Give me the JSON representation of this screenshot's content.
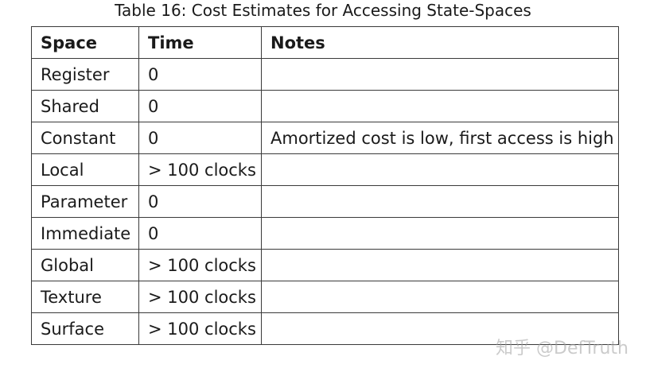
{
  "caption": "Table 16: Cost Estimates for Accessing State-Spaces",
  "table": {
    "headers": [
      "Space",
      "Time",
      "Notes"
    ],
    "rows": [
      [
        "Register",
        "0",
        ""
      ],
      [
        "Shared",
        "0",
        ""
      ],
      [
        "Constant",
        "0",
        "Amortized cost is low, first access is high"
      ],
      [
        "Local",
        "> 100 clocks",
        ""
      ],
      [
        "Parameter",
        "0",
        ""
      ],
      [
        "Immediate",
        "0",
        ""
      ],
      [
        "Global",
        "> 100 clocks",
        ""
      ],
      [
        "Texture",
        "> 100 clocks",
        ""
      ],
      [
        "Surface",
        "> 100 clocks",
        ""
      ]
    ]
  },
  "watermark": "知乎 @DefTruth"
}
